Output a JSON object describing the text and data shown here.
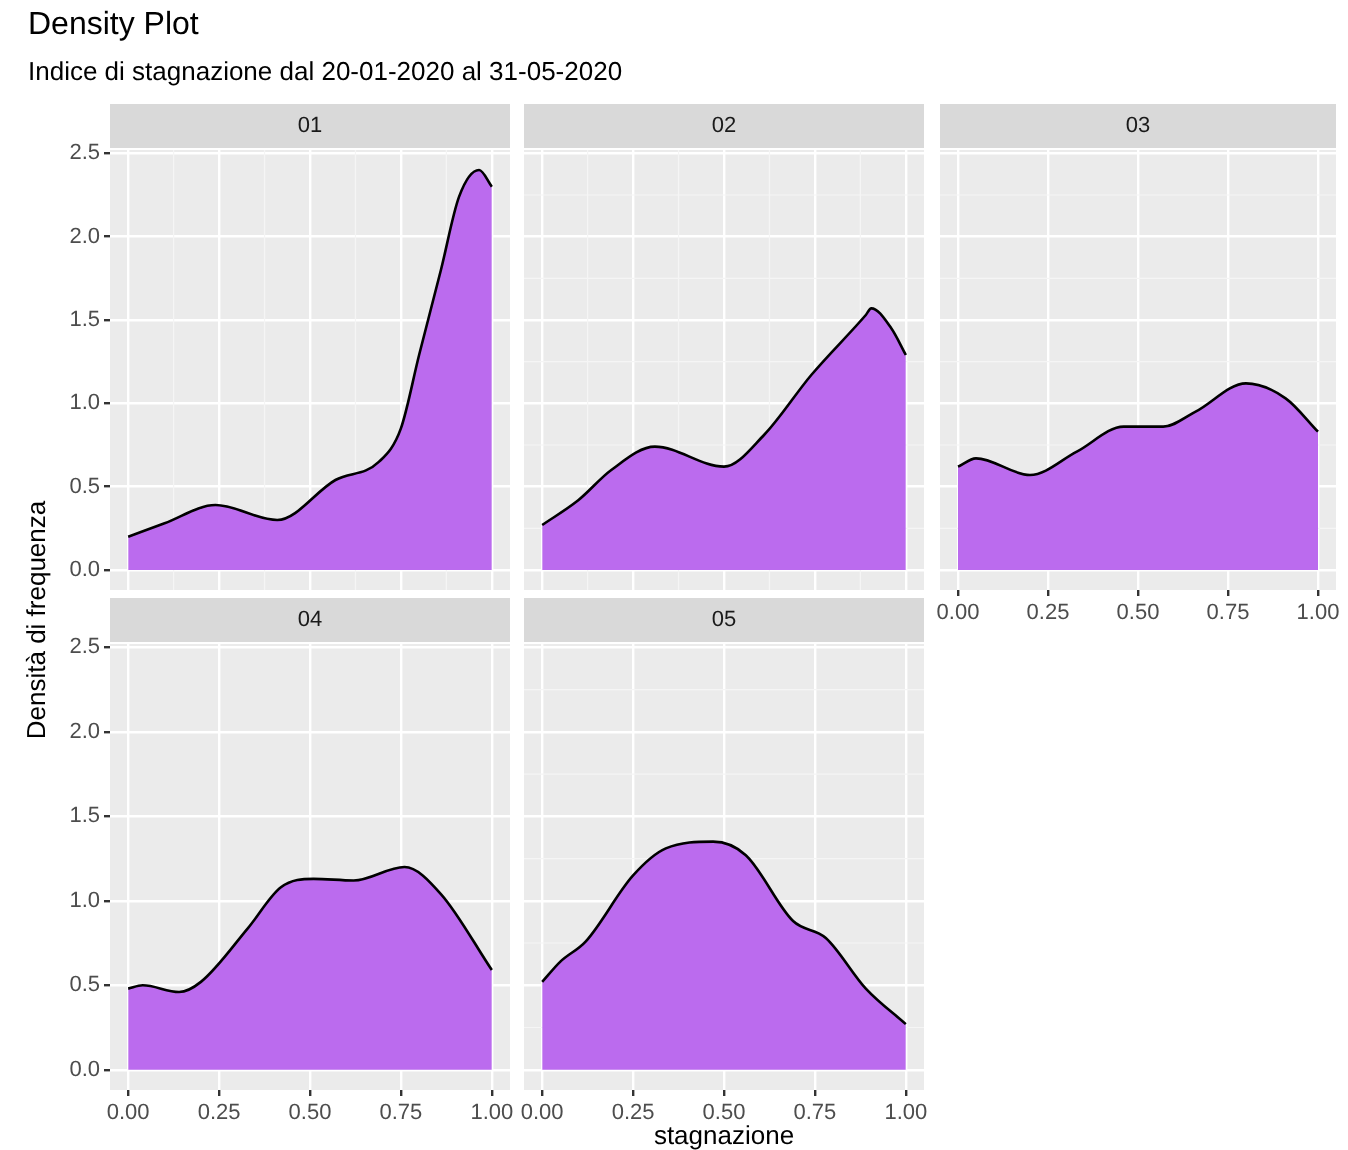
{
  "chart_data": [
    {
      "type": "area",
      "title": "Density Plot",
      "subtitle": "Indice di stagnazione dal 20-01-2020 al 31-05-2020",
      "ylabel": "Densità di frequenza",
      "tick_labels": "y",
      "grid": true,
      "xlim": [
        -0.05,
        1.05
      ],
      "ylim": [
        -0.12,
        2.52
      ],
      "xticks": [
        0,
        0.25,
        0.5,
        0.75,
        1
      ],
      "yticks": [
        {
          "value": 0,
          "label": "0.0"
        },
        0.5,
        {
          "value": 1,
          "label": "1.0"
        },
        1.5,
        {
          "value": 2,
          "label": "2.0"
        },
        2.5
      ],
      "series": [
        {
          "name": "01",
          "color": "#bb6bee",
          "x": [
            0,
            0.1,
            0.24,
            0.41,
            0.57,
            0.69,
            0.75,
            0.8,
            0.86,
            0.91,
            0.965,
            1
          ],
          "values": [
            0.2,
            0.28,
            0.39,
            0.3,
            0.54,
            0.65,
            0.85,
            1.29,
            1.8,
            2.24,
            2.4,
            2.3
          ]
        }
      ]
    },
    {
      "type": "area",
      "tick_labels": false,
      "grid": true,
      "xlim": [
        -0.05,
        1.05
      ],
      "ylim": [
        -0.12,
        2.52
      ],
      "xticks": [
        0,
        0.25,
        0.5,
        0.75,
        1
      ],
      "yticks": [
        0,
        0.5,
        1,
        1.5,
        2,
        2.5
      ],
      "series": [
        {
          "name": "02",
          "color": "#bb6bee",
          "x": [
            0,
            0.1,
            0.19,
            0.31,
            0.5,
            0.61,
            0.74,
            0.89,
            0.905,
            0.96,
            1
          ],
          "values": [
            0.27,
            0.42,
            0.6,
            0.74,
            0.62,
            0.81,
            1.17,
            1.53,
            1.57,
            1.45,
            1.29
          ]
        }
      ]
    },
    {
      "type": "area",
      "tick_labels": "x",
      "grid": true,
      "xlim": [
        -0.05,
        1.05
      ],
      "ylim": [
        -0.12,
        2.52
      ],
      "xticks": [
        {
          "value": 0,
          "label": "0.00"
        },
        0.25,
        {
          "value": 0.5,
          "label": "0.50"
        },
        0.75,
        {
          "value": 1,
          "label": "1.00"
        }
      ],
      "yticks": [
        0,
        0.5,
        1,
        1.5,
        2,
        2.5
      ],
      "series": [
        {
          "name": "03",
          "color": "#bb6bee",
          "x": [
            0,
            0.05,
            0.2,
            0.33,
            0.46,
            0.57,
            0.66,
            0.8,
            0.91,
            1
          ],
          "values": [
            0.62,
            0.67,
            0.57,
            0.71,
            0.86,
            0.86,
            0.95,
            1.12,
            1.03,
            0.83
          ]
        }
      ]
    },
    {
      "type": "area",
      "grid": true,
      "xlim": [
        -0.05,
        1.05
      ],
      "ylim": [
        -0.12,
        2.52
      ],
      "xticks": [
        {
          "value": 0,
          "label": "0.00"
        },
        0.25,
        {
          "value": 0.5,
          "label": "0.50"
        },
        0.75,
        {
          "value": 1,
          "label": "1.00"
        }
      ],
      "yticks": [
        {
          "value": 0,
          "label": "0.0"
        },
        0.5,
        {
          "value": 1,
          "label": "1.0"
        },
        1.5,
        {
          "value": 2,
          "label": "2.0"
        },
        2.5
      ],
      "series": [
        {
          "name": "04",
          "color": "#bb6bee",
          "x": [
            0,
            0.04,
            0.14,
            0.2,
            0.33,
            0.42,
            0.51,
            0.62,
            0.76,
            0.86,
            1
          ],
          "values": [
            0.48,
            0.5,
            0.46,
            0.52,
            0.84,
            1.08,
            1.13,
            1.12,
            1.2,
            1.04,
            0.59
          ]
        }
      ]
    },
    {
      "type": "area",
      "xlabel": "stagnazione",
      "tick_labels": "x",
      "grid": true,
      "xlim": [
        -0.05,
        1.05
      ],
      "ylim": [
        -0.12,
        2.52
      ],
      "xticks": [
        {
          "value": 0,
          "label": "0.00"
        },
        0.25,
        {
          "value": 0.5,
          "label": "0.50"
        },
        0.75,
        {
          "value": 1,
          "label": "1.00"
        }
      ],
      "yticks": [
        0,
        0.5,
        1,
        1.5,
        2,
        2.5
      ],
      "series": [
        {
          "name": "05",
          "color": "#bb6bee",
          "x": [
            0,
            0.05,
            0.12,
            0.25,
            0.34,
            0.47,
            0.56,
            0.69,
            0.78,
            0.89,
            1
          ],
          "values": [
            0.52,
            0.64,
            0.76,
            1.15,
            1.31,
            1.35,
            1.27,
            0.88,
            0.78,
            0.48,
            0.27
          ]
        }
      ]
    }
  ]
}
